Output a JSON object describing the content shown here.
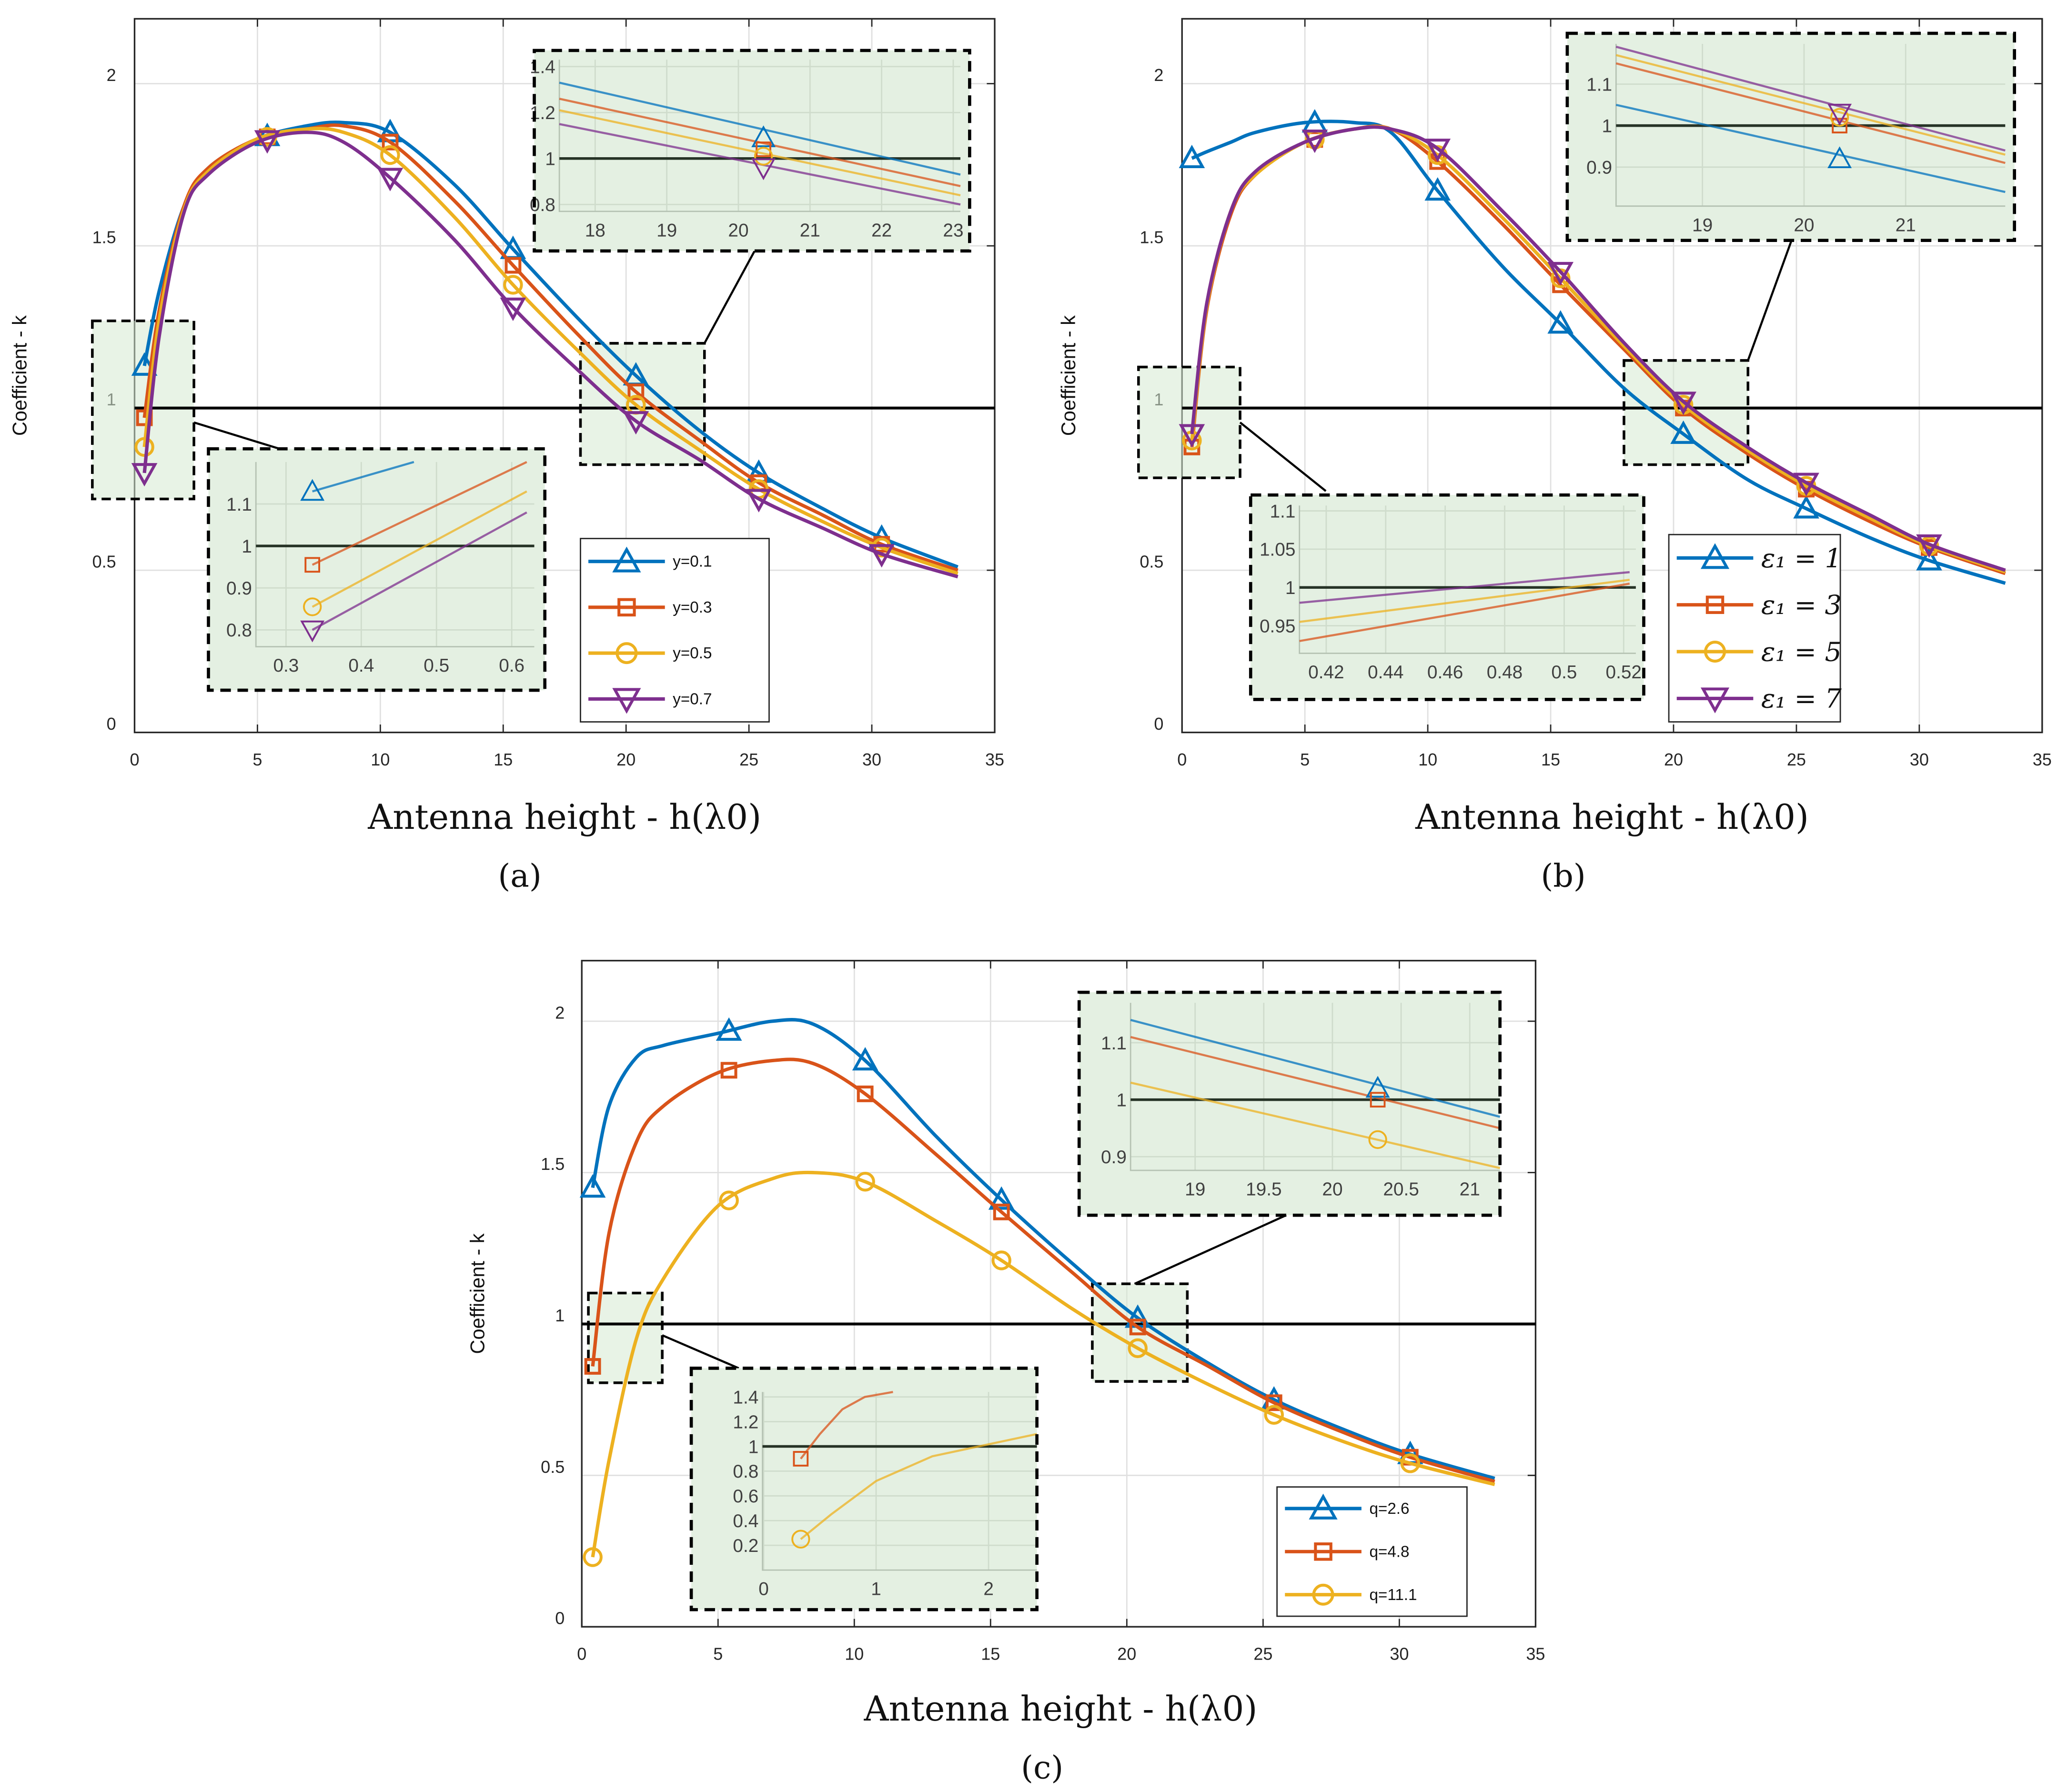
{
  "colors": [
    "#0072BD",
    "#D95319",
    "#EDB120",
    "#7E2F8E"
  ],
  "chart_data": [
    {
      "type": "line",
      "panel_label": "(a)",
      "xlabel": "Antenna height - h(λ0)",
      "ylabel": "Coefficient - k",
      "xlim": [
        0,
        35
      ],
      "ylim": [
        0,
        2.2
      ],
      "xticks": [
        0,
        5,
        10,
        15,
        20,
        25,
        30,
        35
      ],
      "yticks": [
        0,
        0.5,
        1,
        1.5,
        2
      ],
      "reference_line": 1,
      "grid": true,
      "legend_position": "bottom-right",
      "marker_x": [
        0.4,
        5.4,
        10.4,
        15.4,
        20.4,
        25.4,
        30.4
      ],
      "x": [
        0.4,
        1,
        2,
        3,
        5,
        7,
        8.5,
        10.4,
        13,
        15.4,
        18,
        20.4,
        23,
        25.4,
        28,
        30.4,
        33.5
      ],
      "series": [
        {
          "name": "y=0.1",
          "marker": "triangle-up",
          "values": [
            1.13,
            1.36,
            1.62,
            1.74,
            1.83,
            1.87,
            1.88,
            1.85,
            1.69,
            1.49,
            1.28,
            1.1,
            0.93,
            0.8,
            0.69,
            0.6,
            0.51
          ]
        },
        {
          "name": "y=0.3",
          "marker": "square",
          "values": [
            0.97,
            1.3,
            1.62,
            1.74,
            1.83,
            1.86,
            1.87,
            1.82,
            1.64,
            1.44,
            1.23,
            1.05,
            0.9,
            0.77,
            0.67,
            0.58,
            0.5
          ]
        },
        {
          "name": "y=0.5",
          "marker": "circle",
          "values": [
            0.88,
            1.27,
            1.61,
            1.73,
            1.83,
            1.86,
            1.85,
            1.78,
            1.59,
            1.38,
            1.18,
            1.01,
            0.87,
            0.75,
            0.65,
            0.57,
            0.49
          ]
        },
        {
          "name": "y=0.7",
          "marker": "triangle-down",
          "values": [
            0.8,
            1.22,
            1.6,
            1.72,
            1.82,
            1.85,
            1.82,
            1.71,
            1.52,
            1.31,
            1.12,
            0.96,
            0.84,
            0.72,
            0.63,
            0.55,
            0.48
          ]
        }
      ],
      "insets": [
        {
          "xlim": [
            17.5,
            23.1
          ],
          "ylim": [
            0.77,
            1.43
          ],
          "xticks": [
            18,
            19,
            20,
            21,
            22,
            23
          ],
          "yticks": [
            0.8,
            1,
            1.2,
            1.4
          ],
          "lines": [
            [
              [
                17.5,
                1.33
              ],
              [
                23.1,
                0.93
              ]
            ],
            [
              [
                17.5,
                1.26
              ],
              [
                23.1,
                0.88
              ]
            ],
            [
              [
                17.5,
                1.21
              ],
              [
                23.1,
                0.84
              ]
            ],
            [
              [
                17.5,
                1.15
              ],
              [
                23.1,
                0.8
              ]
            ]
          ],
          "markers": [
            [
              20.35,
              1.09
            ],
            [
              20.35,
              1.04
            ],
            [
              20.35,
              1.01
            ],
            [
              20.35,
              0.96
            ]
          ]
        },
        {
          "xlim": [
            0.26,
            0.63
          ],
          "ylim": [
            0.76,
            1.2
          ],
          "xticks": [
            0.3,
            0.4,
            0.5,
            0.6
          ],
          "yticks": [
            0.8,
            0.9,
            1,
            1.1
          ],
          "lines": [
            [
              [
                0.335,
                1.13
              ],
              [
                0.47,
                1.2
              ]
            ],
            [
              [
                0.335,
                0.955
              ],
              [
                0.62,
                1.2
              ]
            ],
            [
              [
                0.335,
                0.855
              ],
              [
                0.62,
                1.13
              ]
            ],
            [
              [
                0.335,
                0.8
              ],
              [
                0.62,
                1.08
              ]
            ]
          ],
          "markers": [
            [
              0.335,
              1.13
            ],
            [
              0.335,
              0.955
            ],
            [
              0.335,
              0.855
            ],
            [
              0.335,
              0.8
            ]
          ]
        }
      ]
    },
    {
      "type": "line",
      "panel_label": "(b)",
      "xlabel": "Antenna height - h(λ0)",
      "ylabel": "Coefficient - k",
      "xlim": [
        0,
        35
      ],
      "ylim": [
        0,
        2.2
      ],
      "xticks": [
        0,
        5,
        10,
        15,
        20,
        25,
        30,
        35
      ],
      "yticks": [
        0,
        0.5,
        1,
        1.5,
        2
      ],
      "reference_line": 1,
      "grid": true,
      "legend_position": "bottom-right",
      "marker_x": [
        0.4,
        5.4,
        10.4,
        15.4,
        20.4,
        25.4,
        30.4
      ],
      "x": [
        0.4,
        1,
        2,
        3,
        5,
        7,
        8.5,
        10.4,
        13,
        15.4,
        18,
        20.4,
        23,
        25.4,
        28,
        30.4,
        33.5
      ],
      "series": [
        {
          "name": "ε₁ = 1",
          "marker": "triangle-up",
          "values": [
            1.77,
            1.79,
            1.82,
            1.85,
            1.88,
            1.88,
            1.85,
            1.67,
            1.44,
            1.26,
            1.06,
            0.92,
            0.78,
            0.69,
            0.6,
            0.53,
            0.46
          ]
        },
        {
          "name": "ε₁ = 3",
          "marker": "square",
          "values": [
            0.88,
            1.3,
            1.6,
            1.72,
            1.82,
            1.86,
            1.86,
            1.76,
            1.57,
            1.38,
            1.18,
            1.0,
            0.86,
            0.75,
            0.65,
            0.57,
            0.49
          ]
        },
        {
          "name": "ε₁ = 5",
          "marker": "circle",
          "values": [
            0.9,
            1.31,
            1.61,
            1.72,
            1.82,
            1.86,
            1.86,
            1.78,
            1.59,
            1.4,
            1.19,
            1.01,
            0.87,
            0.76,
            0.66,
            0.575,
            0.495
          ]
        },
        {
          "name": "ε₁ = 7",
          "marker": "triangle-down",
          "values": [
            0.92,
            1.32,
            1.61,
            1.73,
            1.82,
            1.86,
            1.86,
            1.8,
            1.61,
            1.42,
            1.2,
            1.02,
            0.88,
            0.77,
            0.67,
            0.58,
            0.5
          ]
        }
      ],
      "insets": [
        {
          "xlim": [
            18.15,
            21.98
          ],
          "ylim": [
            0.806,
            1.197
          ],
          "xticks": [
            19,
            20,
            21
          ],
          "yticks": [
            0.9,
            1,
            1.1
          ],
          "lines": [
            [
              [
                18.15,
                1.05
              ],
              [
                21.98,
                0.84
              ]
            ],
            [
              [
                18.15,
                1.15
              ],
              [
                21.98,
                0.91
              ]
            ],
            [
              [
                18.15,
                1.17
              ],
              [
                21.98,
                0.93
              ]
            ],
            [
              [
                18.15,
                1.19
              ],
              [
                21.98,
                0.94
              ]
            ]
          ],
          "markers": [
            [
              20.35,
              0.92
            ],
            [
              20.35,
              1.0
            ],
            [
              20.35,
              1.02
            ],
            [
              20.35,
              1.03
            ]
          ]
        },
        {
          "xlim": [
            0.411,
            0.5241
          ],
          "ylim": [
            0.914,
            1.107
          ],
          "xticks": [
            0.42,
            0.44,
            0.46,
            0.48,
            0.5,
            0.52
          ],
          "yticks": [
            0.95,
            1,
            1.05,
            1.1
          ],
          "lines": [
            null,
            [
              [
                0.411,
                0.93
              ],
              [
                0.522,
                1.005
              ]
            ],
            [
              [
                0.411,
                0.955
              ],
              [
                0.522,
                1.01
              ]
            ],
            [
              [
                0.411,
                0.98
              ],
              [
                0.522,
                1.02
              ]
            ]
          ],
          "markers": []
        }
      ]
    },
    {
      "type": "line",
      "panel_label": "(c)",
      "xlabel": "Antenna height - h(λ0)",
      "ylabel": "Coefficient - k",
      "xlim": [
        0,
        35
      ],
      "ylim": [
        0,
        2.2
      ],
      "xticks": [
        0,
        5,
        10,
        15,
        20,
        25,
        30,
        35
      ],
      "yticks": [
        0,
        0.5,
        1,
        1.5,
        2
      ],
      "reference_line": 1,
      "grid": true,
      "legend_position": "bottom-right",
      "marker_x": [
        0.4,
        5.4,
        10.4,
        15.4,
        20.4,
        25.4,
        30.4
      ],
      "x": [
        0.4,
        1,
        2,
        3,
        5,
        7,
        8.5,
        10.4,
        13,
        15.4,
        18,
        20.4,
        23,
        25.4,
        28,
        30.4,
        33.5
      ],
      "series": [
        {
          "name": "q=2.6",
          "marker": "triangle-up",
          "values": [
            1.45,
            1.72,
            1.88,
            1.92,
            1.96,
            2.0,
            1.99,
            1.87,
            1.62,
            1.41,
            1.2,
            1.02,
            0.87,
            0.75,
            0.65,
            0.57,
            0.49
          ]
        },
        {
          "name": "q=4.8",
          "marker": "square",
          "values": [
            0.86,
            1.3,
            1.6,
            1.72,
            1.83,
            1.87,
            1.86,
            1.76,
            1.56,
            1.37,
            1.17,
            0.99,
            0.86,
            0.74,
            0.64,
            0.56,
            0.48
          ]
        },
        {
          "name": "q=11.1",
          "marker": "circle",
          "values": [
            0.23,
            0.55,
            0.95,
            1.15,
            1.39,
            1.48,
            1.5,
            1.47,
            1.34,
            1.21,
            1.05,
            0.92,
            0.8,
            0.7,
            0.61,
            0.54,
            0.47
          ]
        }
      ],
      "insets": [
        {
          "xlim": [
            18.53,
            21.22
          ],
          "ylim": [
            0.876,
            1.17
          ],
          "xticks": [
            19,
            19.5,
            20,
            20.5,
            21
          ],
          "yticks": [
            0.9,
            1,
            1.1
          ],
          "lines": [
            [
              [
                18.53,
                1.14
              ],
              [
                21.22,
                0.97
              ]
            ],
            [
              [
                18.53,
                1.11
              ],
              [
                21.22,
                0.95
              ]
            ],
            [
              [
                18.53,
                1.03
              ],
              [
                21.22,
                0.88
              ]
            ]
          ],
          "markers": [
            [
              20.33,
              1.02
            ],
            [
              20.33,
              1.0
            ],
            [
              20.33,
              0.93
            ]
          ]
        },
        {
          "xlim": [
            -0.01,
            2.43
          ],
          "ylim": [
            0,
            1.44
          ],
          "xticks": [
            0,
            1,
            2
          ],
          "yticks": [
            0.2,
            0.4,
            0.6,
            0.8,
            1,
            1.2,
            1.4
          ],
          "lines": [
            null,
            [
              [
                0.33,
                0.9
              ],
              [
                0.5,
                1.1
              ],
              [
                0.7,
                1.3
              ],
              [
                0.9,
                1.4
              ],
              [
                1.15,
                1.44
              ]
            ],
            [
              [
                0.33,
                0.25
              ],
              [
                0.6,
                0.45
              ],
              [
                1.0,
                0.72
              ],
              [
                1.5,
                0.92
              ],
              [
                2.43,
                1.1
              ]
            ]
          ],
          "markers": [
            null,
            [
              0.33,
              0.9
            ],
            [
              0.33,
              0.25
            ]
          ]
        }
      ]
    }
  ]
}
